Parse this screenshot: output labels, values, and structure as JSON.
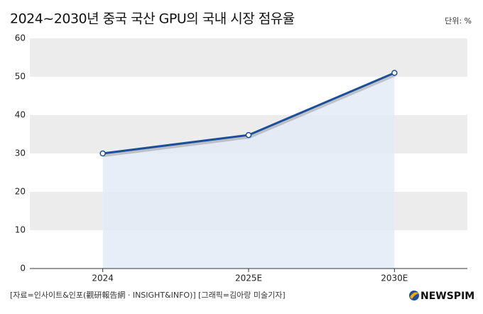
{
  "chart_data": {
    "type": "line",
    "title": "2024~2030년 중국 국산 GPU의 국내 시장 점유율",
    "unit": "단위: %",
    "categories": [
      "2024",
      "2025E",
      "2030E"
    ],
    "series": [
      {
        "name": "중국 국산 GPU 점유율",
        "color": "#1d4f98",
        "values": [
          30,
          34.8,
          51
        ]
      }
    ],
    "area_color": "#e4ebf6",
    "ylim": [
      0,
      60
    ],
    "yticks": [
      0,
      10,
      20,
      30,
      40,
      50,
      60
    ],
    "grid": "bands",
    "band_color": "#ececec",
    "source": "[자료=인사이트&인포(觀研報告網 · INSIGHT&INFO)] [그래픽=김아랑 미술기자]",
    "logo": "NEWSPIM"
  }
}
